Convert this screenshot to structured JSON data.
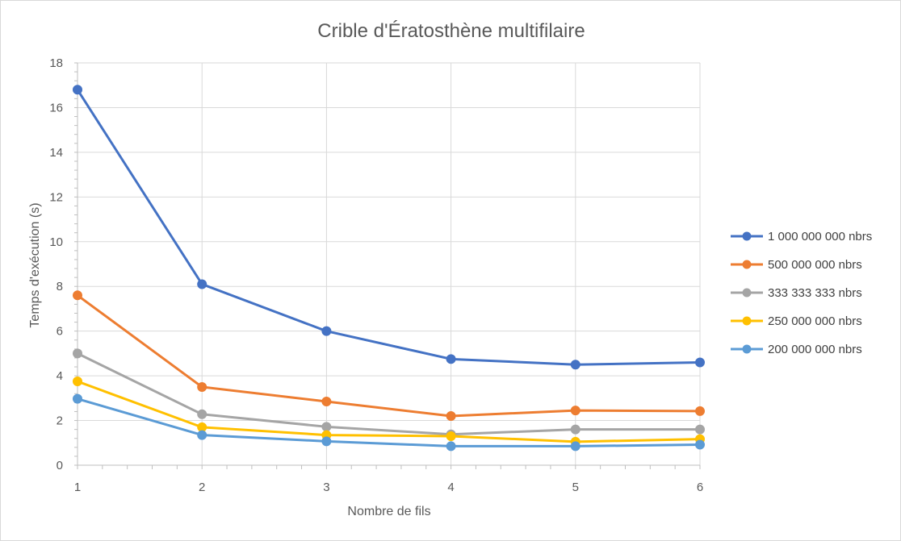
{
  "chart_data": {
    "type": "line",
    "title": "Crible d'Ératosthène multifilaire",
    "xlabel": "Nombre de fils",
    "ylabel": "Temps d'exécution (s)",
    "x": [
      1,
      2,
      3,
      4,
      5,
      6
    ],
    "xlim": [
      1,
      6
    ],
    "ylim": [
      0,
      18
    ],
    "yticks": [
      0,
      2,
      4,
      6,
      8,
      10,
      12,
      14,
      16,
      18
    ],
    "grid": true,
    "legend_position": "right",
    "series": [
      {
        "name": "1 000 000 000 nbrs",
        "color": "#4472C4",
        "values": [
          16.8,
          8.1,
          6.0,
          4.75,
          4.5,
          4.6
        ]
      },
      {
        "name": "500 000 000 nbrs",
        "color": "#ED7D31",
        "values": [
          7.6,
          3.5,
          2.85,
          2.2,
          2.45,
          2.42
        ]
      },
      {
        "name": "333 333 333 nbrs",
        "color": "#A5A5A5",
        "values": [
          5.0,
          2.28,
          1.72,
          1.38,
          1.6,
          1.6
        ]
      },
      {
        "name": "250 000 000 nbrs",
        "color": "#FFC000",
        "values": [
          3.75,
          1.7,
          1.35,
          1.3,
          1.05,
          1.17
        ]
      },
      {
        "name": "200 000 000 nbrs",
        "color": "#5B9BD5",
        "values": [
          2.97,
          1.35,
          1.07,
          0.85,
          0.85,
          0.92
        ]
      }
    ]
  }
}
